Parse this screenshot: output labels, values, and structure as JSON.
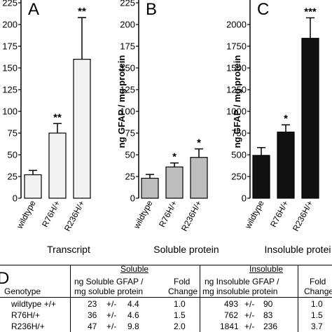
{
  "chart_data": [
    {
      "type": "bar",
      "panel_label": "A",
      "ylabel": "",
      "xlabel": "Transcript",
      "categories": [
        "wildtype",
        "R76H/+",
        "R236H/+"
      ],
      "values": [
        27,
        75,
        160
      ],
      "errors": [
        5,
        11,
        48
      ],
      "significance": [
        "",
        "**",
        "**"
      ],
      "yticks": [
        0,
        25,
        50,
        75,
        100,
        125,
        150,
        175,
        200,
        225
      ],
      "ylim": [
        0,
        225
      ],
      "bar_color": "#f2f2f2"
    },
    {
      "type": "bar",
      "panel_label": "B",
      "ylabel": "ng GFAP / mg protein",
      "xlabel": "Soluble protein",
      "categories": [
        "wildtype",
        "R76H/+",
        "R236H/+"
      ],
      "values": [
        23,
        36,
        47
      ],
      "errors": [
        4.4,
        4.6,
        9.8
      ],
      "significance": [
        "",
        "*",
        "*"
      ],
      "yticks": [
        0,
        25,
        50,
        75,
        100,
        125,
        150,
        175,
        200,
        225
      ],
      "ylim": [
        0,
        225
      ],
      "bar_color": "#bdbdbd"
    },
    {
      "type": "bar",
      "panel_label": "C",
      "ylabel": "ng GFAP / mg protein",
      "xlabel": "Insoluble protei",
      "categories": [
        "wildtype",
        "R76H/+",
        "R236H/+"
      ],
      "values": [
        493,
        762,
        1841
      ],
      "errors": [
        90,
        83,
        236
      ],
      "significance": [
        "",
        "*",
        "***"
      ],
      "yticks": [
        0,
        250,
        500,
        750,
        1000,
        1250,
        1500,
        1750,
        2000
      ],
      "ylim": [
        0,
        2250
      ],
      "bar_color": "#111111"
    },
    {
      "type": "table",
      "panel_label": "D",
      "group_headers": {
        "soluble": "Soluble",
        "insoluble": "Insoluble"
      },
      "header": {
        "genotype": "Genotype",
        "sol_line1": "ng Soluble GFAP /",
        "sol_line2": "mg soluble protein",
        "fold_line1": "Fold",
        "fold_line2": "Change",
        "insol_line1": "ng Insoluble GFAP /",
        "insol_line2": "mg insoluble protein",
        "fold2_line1": "Fold",
        "fold2_line2": "Change"
      },
      "rows": [
        {
          "genotype": "wildtype +/+",
          "sol": "23",
          "pm1": "+/-",
          "sol_err": "4.4",
          "sol_fold": "1.0",
          "ins": "493",
          "pm2": "+/-",
          "ins_err": "90",
          "ins_fold": "1.0"
        },
        {
          "genotype": "R76H/+",
          "sol": "36",
          "pm1": "+/-",
          "sol_err": "4.6",
          "sol_fold": "1.5",
          "ins": "762",
          "pm2": "+/-",
          "ins_err": "83",
          "ins_fold": "1.5"
        },
        {
          "genotype": "R236H/+",
          "sol": "47",
          "pm1": "+/-",
          "sol_err": "9.8",
          "sol_fold": "2.0",
          "ins": "1841",
          "pm2": "+/-",
          "ins_err": "236",
          "ins_fold": "3.7"
        }
      ]
    }
  ]
}
